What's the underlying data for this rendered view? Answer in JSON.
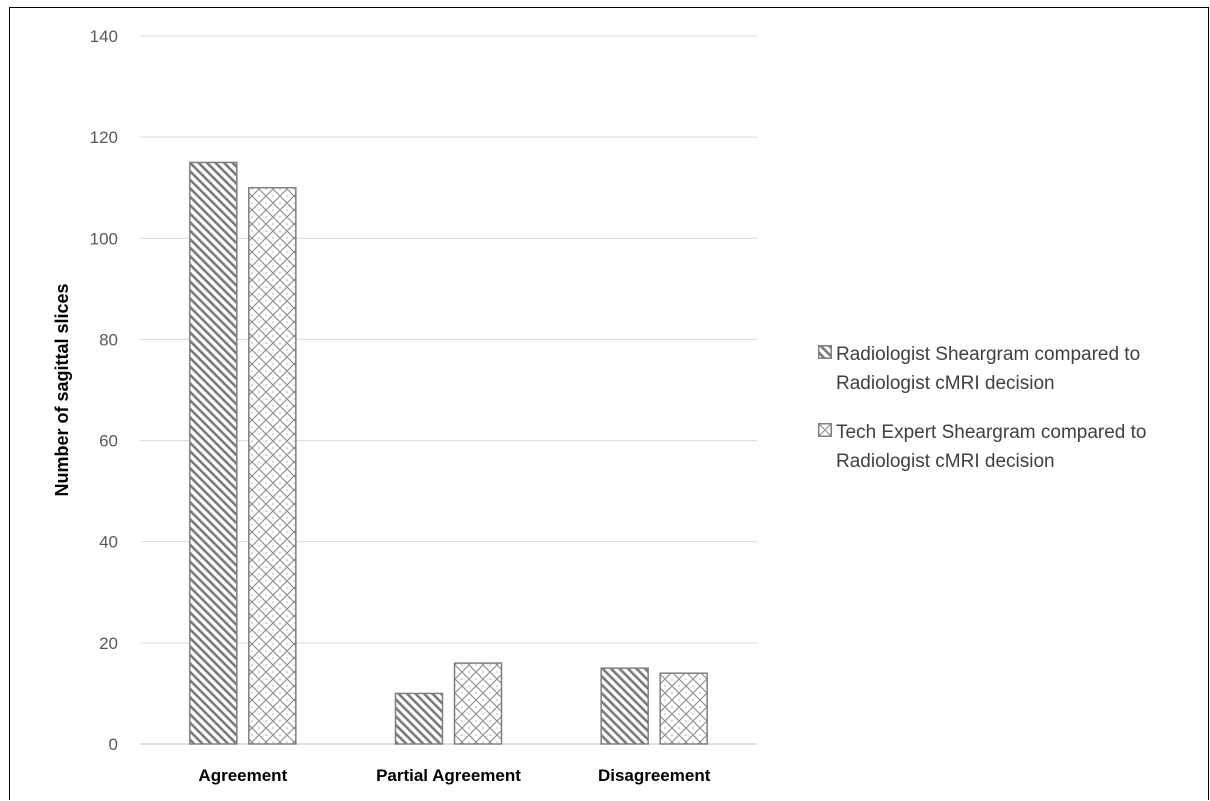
{
  "chart_data": {
    "type": "bar",
    "title": "",
    "xlabel": "",
    "ylabel": "Number of sagittal slices",
    "ylim": [
      0,
      140
    ],
    "yticks": [
      0,
      20,
      40,
      60,
      80,
      100,
      120,
      140
    ],
    "grid": true,
    "legend_position": "right",
    "categories": [
      "Agreement",
      "Partial Agreement",
      "Disagreement"
    ],
    "series": [
      {
        "name": "Radiologist Sheargram compared to Radiologist cMRI decision",
        "values": [
          115,
          10,
          15
        ],
        "pattern": "diagonal-stripes",
        "color": "#808080"
      },
      {
        "name": "Tech Expert Sheargram compared to Radiologist cMRI decision",
        "values": [
          110,
          16,
          14
        ],
        "pattern": "crosshatch-dots",
        "color": "#808080"
      }
    ]
  }
}
